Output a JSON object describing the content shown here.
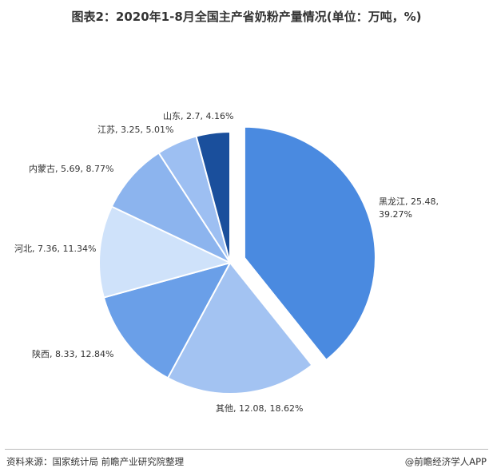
{
  "chart_data": {
    "type": "pie",
    "title": "图表2：2020年1-8月全国主产省奶粉产量情况(单位：万吨，%)",
    "values": [
      25.48,
      12.08,
      8.33,
      7.36,
      5.69,
      3.25,
      2.7
    ],
    "value_labels": [
      "黑龙江, 25.48, 39.27%",
      "其他, 12.08, 18.62%",
      "陕西, 8.33, 12.84%",
      "河北, 7.36, 11.34%",
      "内蒙古, 5.69, 8.77%",
      "江苏, 3.25, 5.01%",
      "山东, 2.7, 4.16%"
    ],
    "colors": [
      "#4a8ae0",
      "#a3c3f2",
      "#6a9fe8",
      "#cfe2fa",
      "#8cb4ee",
      "#9dbff2",
      "#1a4f9c"
    ],
    "source": "资料来源：国家统计局 前瞻产业研究院整理",
    "brand": "@前瞻经济学人APP"
  }
}
